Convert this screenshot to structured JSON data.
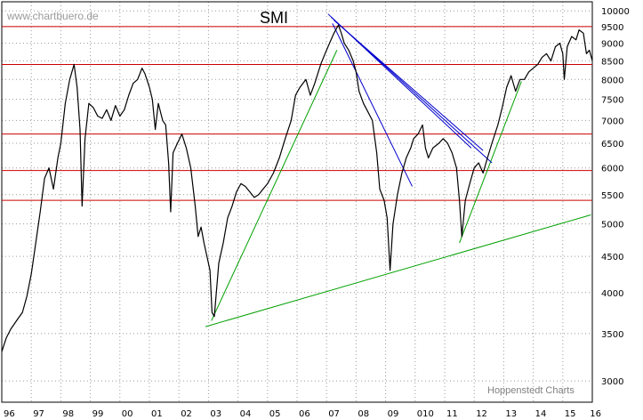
{
  "chart_data": {
    "type": "line",
    "title": "SMI",
    "watermark": "www.chartbuero.de",
    "credit": "Hoppenstedt Charts",
    "xlabel": "",
    "ylabel": "",
    "y_scale": "log",
    "ylim": [
      2800,
      10300
    ],
    "xlim": [
      1996.0,
      2016.0
    ],
    "x_ticks": [
      "96",
      "97",
      "98",
      "99",
      "00",
      "01",
      "02",
      "03",
      "04",
      "05",
      "06",
      "07",
      "08",
      "09",
      "010",
      "11",
      "12",
      "13",
      "14",
      "15",
      "16"
    ],
    "y_ticks": [
      3000,
      3500,
      4000,
      4500,
      5000,
      5500,
      6000,
      6500,
      7000,
      7500,
      8000,
      8500,
      9000,
      9500,
      10000
    ],
    "grid": {
      "horizontal": true,
      "vertical": true,
      "style": "dotted"
    },
    "colors": {
      "price": "#000000",
      "resistance": "#cc0000",
      "uptrend": "#00a000",
      "downtrend": "#0000cc",
      "grid": "#9a9a9a"
    },
    "series": [
      {
        "values": [
          [
            1996.0,
            3300
          ],
          [
            1996.15,
            3450
          ],
          [
            1996.3,
            3550
          ],
          [
            1996.5,
            3650
          ],
          [
            1996.7,
            3750
          ],
          [
            1996.85,
            3950
          ],
          [
            1997.0,
            4250
          ],
          [
            1997.15,
            4700
          ],
          [
            1997.3,
            5200
          ],
          [
            1997.45,
            5800
          ],
          [
            1997.6,
            6000
          ],
          [
            1997.75,
            5600
          ],
          [
            1997.9,
            6200
          ],
          [
            1998.0,
            6500
          ],
          [
            1998.15,
            7400
          ],
          [
            1998.3,
            8000
          ],
          [
            1998.45,
            8400
          ],
          [
            1998.55,
            7800
          ],
          [
            1998.65,
            6800
          ],
          [
            1998.72,
            5300
          ],
          [
            1998.82,
            6600
          ],
          [
            1998.95,
            7400
          ],
          [
            1999.1,
            7300
          ],
          [
            1999.25,
            7100
          ],
          [
            1999.4,
            7050
          ],
          [
            1999.55,
            7250
          ],
          [
            1999.7,
            7000
          ],
          [
            1999.85,
            7350
          ],
          [
            2000.0,
            7100
          ],
          [
            2000.15,
            7250
          ],
          [
            2000.3,
            7600
          ],
          [
            2000.45,
            7900
          ],
          [
            2000.6,
            8000
          ],
          [
            2000.75,
            8300
          ],
          [
            2000.85,
            8150
          ],
          [
            2001.0,
            7800
          ],
          [
            2001.1,
            7500
          ],
          [
            2001.2,
            6800
          ],
          [
            2001.3,
            7400
          ],
          [
            2001.45,
            7000
          ],
          [
            2001.55,
            6900
          ],
          [
            2001.65,
            6100
          ],
          [
            2001.72,
            5200
          ],
          [
            2001.8,
            6300
          ],
          [
            2001.95,
            6500
          ],
          [
            2002.1,
            6700
          ],
          [
            2002.25,
            6400
          ],
          [
            2002.4,
            6000
          ],
          [
            2002.55,
            5300
          ],
          [
            2002.65,
            4800
          ],
          [
            2002.75,
            4950
          ],
          [
            2002.85,
            4700
          ],
          [
            2002.95,
            4500
          ],
          [
            2003.05,
            4300
          ],
          [
            2003.12,
            3750
          ],
          [
            2003.2,
            3700
          ],
          [
            2003.35,
            4400
          ],
          [
            2003.5,
            4700
          ],
          [
            2003.65,
            5100
          ],
          [
            2003.8,
            5300
          ],
          [
            2003.95,
            5550
          ],
          [
            2004.1,
            5700
          ],
          [
            2004.25,
            5650
          ],
          [
            2004.4,
            5550
          ],
          [
            2004.55,
            5450
          ],
          [
            2004.7,
            5500
          ],
          [
            2004.85,
            5600
          ],
          [
            2005.0,
            5700
          ],
          [
            2005.2,
            5900
          ],
          [
            2005.4,
            6200
          ],
          [
            2005.6,
            6600
          ],
          [
            2005.8,
            7000
          ],
          [
            2005.95,
            7600
          ],
          [
            2006.1,
            7800
          ],
          [
            2006.3,
            8000
          ],
          [
            2006.45,
            7600
          ],
          [
            2006.6,
            7900
          ],
          [
            2006.8,
            8400
          ],
          [
            2006.95,
            8700
          ],
          [
            2007.1,
            9000
          ],
          [
            2007.25,
            9300
          ],
          [
            2007.4,
            9550
          ],
          [
            2007.5,
            9300
          ],
          [
            2007.6,
            9000
          ],
          [
            2007.75,
            8800
          ],
          [
            2007.9,
            8500
          ],
          [
            2008.0,
            8200
          ],
          [
            2008.1,
            7700
          ],
          [
            2008.25,
            7400
          ],
          [
            2008.4,
            7200
          ],
          [
            2008.55,
            7000
          ],
          [
            2008.7,
            6300
          ],
          [
            2008.8,
            5600
          ],
          [
            2008.95,
            5400
          ],
          [
            2009.05,
            5100
          ],
          [
            2009.15,
            4300
          ],
          [
            2009.25,
            5000
          ],
          [
            2009.4,
            5500
          ],
          [
            2009.55,
            5900
          ],
          [
            2009.7,
            6200
          ],
          [
            2009.85,
            6400
          ],
          [
            2009.95,
            6600
          ],
          [
            2010.1,
            6700
          ],
          [
            2010.25,
            6900
          ],
          [
            2010.35,
            6400
          ],
          [
            2010.45,
            6200
          ],
          [
            2010.6,
            6400
          ],
          [
            2010.8,
            6500
          ],
          [
            2010.95,
            6600
          ],
          [
            2011.1,
            6500
          ],
          [
            2011.25,
            6300
          ],
          [
            2011.4,
            6000
          ],
          [
            2011.5,
            5400
          ],
          [
            2011.58,
            4800
          ],
          [
            2011.7,
            5400
          ],
          [
            2011.85,
            5700
          ],
          [
            2012.0,
            6000
          ],
          [
            2012.15,
            6100
          ],
          [
            2012.3,
            5900
          ],
          [
            2012.45,
            6200
          ],
          [
            2012.6,
            6500
          ],
          [
            2012.8,
            6900
          ],
          [
            2012.95,
            7300
          ],
          [
            2013.1,
            7800
          ],
          [
            2013.25,
            8100
          ],
          [
            2013.4,
            7700
          ],
          [
            2013.55,
            8000
          ],
          [
            2013.7,
            8000
          ],
          [
            2013.85,
            8200
          ],
          [
            2014.0,
            8300
          ],
          [
            2014.15,
            8400
          ],
          [
            2014.3,
            8600
          ],
          [
            2014.45,
            8700
          ],
          [
            2014.6,
            8500
          ],
          [
            2014.75,
            8900
          ],
          [
            2014.9,
            9000
          ],
          [
            2015.0,
            8700
          ],
          [
            2015.05,
            8000
          ],
          [
            2015.15,
            8900
          ],
          [
            2015.3,
            9200
          ],
          [
            2015.45,
            9100
          ],
          [
            2015.55,
            9400
          ],
          [
            2015.7,
            9300
          ],
          [
            2015.8,
            8700
          ],
          [
            2015.9,
            8800
          ],
          [
            2016.0,
            8500
          ]
        ]
      }
    ],
    "horizontal_lines": [
      9500,
      8400,
      6700,
      5950,
      5400
    ],
    "trend_lines": [
      {
        "kind": "uptrend",
        "from": [
          2002.9,
          3580
        ],
        "to": [
          2015.95,
          5150
        ]
      },
      {
        "kind": "uptrend",
        "from": [
          2003.1,
          3650
        ],
        "to": [
          2007.35,
          8800
        ]
      },
      {
        "kind": "uptrend",
        "from": [
          2011.5,
          4700
        ],
        "to": [
          2013.6,
          7950
        ]
      },
      {
        "kind": "downtrend",
        "from": [
          2007.2,
          9600
        ],
        "to": [
          2009.9,
          5650
        ]
      },
      {
        "kind": "downtrend",
        "from": [
          2007.15,
          9800
        ],
        "to": [
          2012.6,
          6100
        ]
      },
      {
        "kind": "downtrend",
        "from": [
          2007.25,
          9700
        ],
        "to": [
          2012.3,
          6350
        ]
      },
      {
        "kind": "downtrend",
        "from": [
          2007.05,
          9900
        ],
        "to": [
          2011.9,
          6400
        ]
      }
    ]
  }
}
